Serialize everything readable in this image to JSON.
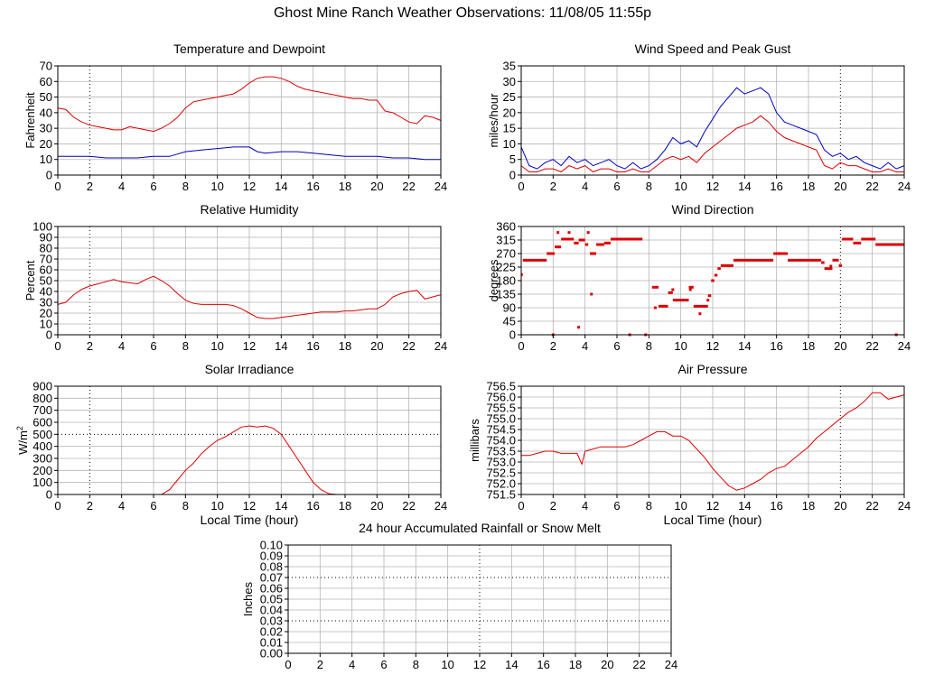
{
  "page": {
    "title": "Ghost Mine Ranch Weather Observations: 11/08/05 11:55p"
  },
  "colors": {
    "red": "#dd0000",
    "blue": "#0000bb",
    "grid": "#b4b4b4",
    "axis": "#000000"
  },
  "chart_data": [
    {
      "id": "temp",
      "type": "line",
      "title": "Temperature and Dewpoint",
      "ylabel": "Fahrenheit",
      "xlabel": "",
      "xlim": [
        0,
        24
      ],
      "ylim": [
        0,
        70
      ],
      "xticks": [
        0,
        2,
        4,
        6,
        8,
        10,
        12,
        14,
        16,
        18,
        20,
        22,
        24
      ],
      "yticks": [
        0,
        10,
        20,
        30,
        40,
        50,
        60,
        70
      ],
      "ytick_labels": [
        "0",
        "10",
        "20",
        "30",
        "40",
        "50",
        "60",
        "70"
      ],
      "grid": true,
      "series": [
        {
          "color": "#dd0000",
          "x": [
            0,
            0.5,
            1,
            1.5,
            2,
            2.5,
            3,
            3.5,
            4,
            4.5,
            5,
            5.5,
            6,
            6.5,
            7,
            7.5,
            8,
            8.5,
            9,
            9.5,
            10,
            10.5,
            11,
            11.5,
            12,
            12.5,
            13,
            13.5,
            14,
            14.5,
            15,
            15.5,
            16,
            16.5,
            17,
            17.5,
            18,
            18.5,
            19,
            19.5,
            20,
            20.5,
            21,
            21.5,
            22,
            22.5,
            23,
            23.5,
            24
          ],
          "values": [
            43,
            42,
            37,
            34,
            32,
            31,
            30,
            29,
            29,
            31,
            30,
            29,
            28,
            30,
            33,
            37,
            43,
            47,
            48,
            49,
            50,
            51,
            52,
            55,
            59,
            62,
            63,
            63,
            62,
            60,
            57,
            55,
            54,
            53,
            52,
            51,
            50,
            49,
            49,
            48,
            48,
            41,
            40,
            37,
            34,
            33,
            38,
            37,
            35
          ]
        },
        {
          "color": "#0000bb",
          "x": [
            0,
            1,
            2,
            3,
            4,
            5,
            6,
            7,
            8,
            9,
            10,
            11,
            12,
            12.5,
            13,
            14,
            15,
            16,
            17,
            18,
            19,
            20,
            21,
            22,
            23,
            24
          ],
          "values": [
            12,
            12,
            12,
            11,
            11,
            11,
            12,
            12,
            15,
            16,
            17,
            18,
            18,
            15,
            14,
            15,
            15,
            14,
            13,
            12,
            12,
            12,
            11,
            11,
            10,
            10
          ]
        }
      ]
    },
    {
      "id": "wind",
      "type": "line",
      "title": "Wind Speed and Peak Gust",
      "ylabel": "miles/hour",
      "xlabel": "",
      "xlim": [
        0,
        24
      ],
      "ylim": [
        0,
        35
      ],
      "xticks": [
        0,
        2,
        4,
        6,
        8,
        10,
        12,
        14,
        16,
        18,
        20,
        22,
        24
      ],
      "yticks": [
        0,
        5,
        10,
        15,
        20,
        25,
        30,
        35
      ],
      "ytick_labels": [
        "0",
        "5",
        "10",
        "15",
        "20",
        "25",
        "30",
        "35"
      ],
      "grid": true,
      "series": [
        {
          "color": "#0000bb",
          "x": [
            0,
            0.5,
            1,
            1.5,
            2,
            2.5,
            3,
            3.5,
            4,
            4.5,
            5,
            5.5,
            6,
            6.5,
            7,
            7.5,
            8,
            8.5,
            9,
            9.5,
            10,
            10.5,
            11,
            11.5,
            12,
            12.5,
            13,
            13.5,
            14,
            14.5,
            15,
            15.5,
            16,
            16.5,
            17,
            17.5,
            18,
            18.5,
            19,
            19.5,
            20,
            20.5,
            21,
            21.5,
            22,
            22.5,
            23,
            23.5,
            24
          ],
          "values": [
            9,
            3,
            2,
            4,
            5,
            3,
            6,
            4,
            5,
            3,
            4,
            5,
            3,
            2,
            4,
            2,
            3,
            5,
            8,
            12,
            10,
            11,
            9,
            14,
            18,
            22,
            25,
            28,
            26,
            27,
            28,
            26,
            20,
            17,
            16,
            15,
            14,
            13,
            8,
            6,
            7,
            5,
            6,
            4,
            3,
            2,
            4,
            2,
            3
          ]
        },
        {
          "color": "#dd0000",
          "x": [
            0,
            0.5,
            1,
            1.5,
            2,
            2.5,
            3,
            3.5,
            4,
            4.5,
            5,
            5.5,
            6,
            6.5,
            7,
            7.5,
            8,
            8.5,
            9,
            9.5,
            10,
            10.5,
            11,
            11.5,
            12,
            12.5,
            13,
            13.5,
            14,
            14.5,
            15,
            15.5,
            16,
            16.5,
            17,
            17.5,
            18,
            18.5,
            19,
            19.5,
            20,
            20.5,
            21,
            21.5,
            22,
            22.5,
            23,
            23.5,
            24
          ],
          "values": [
            3,
            1,
            1,
            2,
            2,
            1,
            3,
            2,
            3,
            1,
            2,
            2,
            1,
            1,
            2,
            1,
            1,
            3,
            5,
            6,
            5,
            6,
            4,
            7,
            9,
            11,
            13,
            15,
            16,
            17,
            19,
            17,
            14,
            12,
            11,
            10,
            9,
            8,
            3,
            2,
            4,
            3,
            3,
            2,
            1,
            1,
            2,
            1,
            1
          ]
        }
      ]
    },
    {
      "id": "humidity",
      "type": "line",
      "title": "Relative Humidity",
      "ylabel": "Percent",
      "xlabel": "",
      "xlim": [
        0,
        24
      ],
      "ylim": [
        0,
        100
      ],
      "xticks": [
        0,
        2,
        4,
        6,
        8,
        10,
        12,
        14,
        16,
        18,
        20,
        22,
        24
      ],
      "yticks": [
        0,
        10,
        20,
        30,
        40,
        50,
        60,
        70,
        80,
        90,
        100
      ],
      "ytick_labels": [
        "0",
        "10",
        "20",
        "30",
        "40",
        "50",
        "60",
        "70",
        "80",
        "90",
        "100"
      ],
      "grid": true,
      "series": [
        {
          "color": "#dd0000",
          "x": [
            0,
            0.5,
            1,
            1.5,
            2,
            2.5,
            3,
            3.5,
            4,
            4.5,
            5,
            5.5,
            6,
            6.5,
            7,
            7.5,
            8,
            8.5,
            9,
            9.5,
            10,
            10.5,
            11,
            11.5,
            12,
            12.5,
            13,
            13.5,
            14,
            14.5,
            15,
            15.5,
            16,
            16.5,
            17,
            17.5,
            18,
            18.5,
            19,
            19.5,
            20,
            20.5,
            21,
            21.5,
            22,
            22.5,
            23,
            23.5,
            24
          ],
          "values": [
            28,
            30,
            37,
            42,
            45,
            47,
            49,
            51,
            49,
            48,
            47,
            51,
            54,
            50,
            45,
            38,
            32,
            29,
            28,
            28,
            28,
            28,
            27,
            24,
            20,
            16,
            15,
            15,
            16,
            17,
            18,
            19,
            20,
            21,
            21,
            21,
            22,
            22,
            23,
            24,
            24,
            28,
            35,
            38,
            40,
            41,
            33,
            35,
            37
          ]
        }
      ]
    },
    {
      "id": "winddir",
      "type": "scatter",
      "title": "Wind Direction",
      "ylabel": "degrees",
      "xlabel": "",
      "xlim": [
        0,
        24
      ],
      "ylim": [
        0,
        360
      ],
      "xticks": [
        0,
        2,
        4,
        6,
        8,
        10,
        12,
        14,
        16,
        18,
        20,
        22,
        24
      ],
      "yticks": [
        0,
        45,
        90,
        135,
        180,
        225,
        270,
        315,
        360
      ],
      "ytick_labels": [
        "0",
        "45",
        "90",
        "135",
        "180",
        "225",
        "270",
        "315",
        "360"
      ],
      "grid": true,
      "segments": [
        [
          0,
          0.1,
          200
        ],
        [
          0.1,
          1.6,
          248
        ],
        [
          1.6,
          2.1,
          270
        ],
        [
          2.1,
          2.5,
          292
        ],
        [
          2.5,
          3.3,
          318
        ],
        [
          3.3,
          3.6,
          305
        ],
        [
          3.6,
          4.0,
          315
        ],
        [
          4.0,
          4.2,
          300
        ],
        [
          4.3,
          4.7,
          270
        ],
        [
          4.7,
          5.2,
          300
        ],
        [
          5.2,
          5.6,
          305
        ],
        [
          5.6,
          7.6,
          318
        ],
        [
          8.2,
          8.6,
          158
        ],
        [
          8.6,
          9.2,
          95
        ],
        [
          9.2,
          9.5,
          140
        ],
        [
          9.5,
          10.5,
          115
        ],
        [
          10.5,
          10.8,
          158
        ],
        [
          10.8,
          11.7,
          95
        ],
        [
          11.7,
          11.9,
          130
        ],
        [
          11.9,
          12.1,
          180
        ],
        [
          12.1,
          12.3,
          198
        ],
        [
          12.3,
          12.5,
          220
        ],
        [
          12.5,
          13.3,
          230
        ],
        [
          13.3,
          15.8,
          248
        ],
        [
          15.8,
          16.7,
          270
        ],
        [
          16.7,
          18.8,
          248
        ],
        [
          18.8,
          19.0,
          240
        ],
        [
          19.0,
          19.5,
          220
        ],
        [
          19.5,
          19.9,
          248
        ],
        [
          19.9,
          20.1,
          230
        ],
        [
          20.1,
          20.8,
          318
        ],
        [
          20.8,
          21.3,
          305
        ],
        [
          21.3,
          22.2,
          318
        ],
        [
          22.2,
          24,
          300
        ]
      ],
      "points": [
        [
          2,
          0
        ],
        [
          2.3,
          340
        ],
        [
          3.0,
          340
        ],
        [
          3.6,
          25
        ],
        [
          4.2,
          340
        ],
        [
          4.4,
          135
        ],
        [
          6.8,
          0
        ],
        [
          7.8,
          0
        ],
        [
          8.4,
          90
        ],
        [
          9.5,
          150
        ],
        [
          10.6,
          150
        ],
        [
          11.2,
          70
        ],
        [
          11.7,
          115
        ],
        [
          19.4,
          228
        ],
        [
          23.5,
          0
        ]
      ]
    },
    {
      "id": "solar",
      "type": "line",
      "title": "Solar Irradiance",
      "ylabel": "W/m",
      "ylabel_sup": "2",
      "xlabel": "Local Time (hour)",
      "xlim": [
        0,
        24
      ],
      "ylim": [
        0,
        900
      ],
      "xticks": [
        0,
        2,
        4,
        6,
        8,
        10,
        12,
        14,
        16,
        18,
        20,
        22,
        24
      ],
      "yticks": [
        0,
        100,
        200,
        300,
        400,
        500,
        600,
        700,
        800,
        900
      ],
      "ytick_labels": [
        "0",
        "100",
        "200",
        "300",
        "400",
        "500",
        "600",
        "700",
        "800",
        "900"
      ],
      "grid": true,
      "series": [
        {
          "color": "#dd0000",
          "x": [
            0,
            6.5,
            7,
            7.5,
            8,
            8.5,
            9,
            9.5,
            10,
            10.5,
            11,
            11.5,
            12,
            12.5,
            13,
            13.5,
            14,
            14.5,
            15,
            15.5,
            16,
            16.5,
            17,
            17.5,
            24
          ],
          "values": [
            0,
            0,
            40,
            120,
            200,
            260,
            340,
            400,
            450,
            480,
            520,
            560,
            570,
            560,
            570,
            550,
            500,
            400,
            300,
            200,
            100,
            40,
            5,
            0,
            0
          ]
        }
      ]
    },
    {
      "id": "pressure",
      "type": "line",
      "title": "Air Pressure",
      "ylabel": "millibars",
      "xlabel": "Local Time (hour)",
      "xlim": [
        0,
        24
      ],
      "ylim": [
        751.5,
        756.5
      ],
      "xticks": [
        0,
        2,
        4,
        6,
        8,
        10,
        12,
        14,
        16,
        18,
        20,
        22,
        24
      ],
      "yticks": [
        751.5,
        752.0,
        752.5,
        753.0,
        753.5,
        754.0,
        754.5,
        755.0,
        755.5,
        756.0,
        756.5
      ],
      "ytick_labels": [
        "751.5",
        "752.0",
        "752.5",
        "753.0",
        "753.5",
        "754.0",
        "754.5",
        "755.0",
        "755.5",
        "756.0",
        "756.5"
      ],
      "grid": true,
      "series": [
        {
          "color": "#dd0000",
          "x": [
            0,
            0.5,
            1,
            1.5,
            2,
            2.5,
            3,
            3.5,
            3.8,
            4,
            4.5,
            5,
            5.5,
            6,
            6.5,
            7,
            7.5,
            8,
            8.5,
            9,
            9.5,
            10,
            10.5,
            11,
            11.5,
            12,
            12.5,
            13,
            13.5,
            14,
            14.5,
            15,
            15.5,
            16,
            16.5,
            17,
            17.5,
            18,
            18.5,
            19,
            19.5,
            20,
            20.5,
            21,
            21.5,
            22,
            22.5,
            23,
            23.5,
            24
          ],
          "values": [
            753.3,
            753.3,
            753.4,
            753.5,
            753.5,
            753.4,
            753.4,
            753.4,
            752.9,
            753.5,
            753.6,
            753.7,
            753.7,
            753.7,
            753.7,
            753.8,
            754.0,
            754.2,
            754.4,
            754.4,
            754.2,
            754.2,
            754.0,
            753.6,
            753.2,
            752.7,
            752.3,
            751.9,
            751.7,
            751.8,
            752.0,
            752.2,
            752.5,
            752.7,
            752.8,
            753.1,
            753.4,
            753.7,
            754.1,
            754.4,
            754.7,
            755.0,
            755.3,
            755.5,
            755.8,
            756.2,
            756.2,
            755.9,
            756.0,
            756.1
          ]
        }
      ]
    },
    {
      "id": "rain",
      "type": "line",
      "title": "24 hour Accumulated Rainfall or Snow Melt",
      "ylabel": "Inches",
      "xlabel": "",
      "xlim": [
        0,
        24
      ],
      "ylim": [
        0,
        0.1
      ],
      "xticks": [
        0,
        2,
        4,
        6,
        8,
        10,
        12,
        14,
        16,
        18,
        20,
        22,
        24
      ],
      "yticks": [
        0,
        0.01,
        0.02,
        0.03,
        0.04,
        0.05,
        0.06,
        0.07,
        0.08,
        0.09,
        0.1
      ],
      "ytick_labels": [
        "0.00",
        "0.01",
        "0.02",
        "0.03",
        "0.04",
        "0.05",
        "0.06",
        "0.07",
        "0.08",
        "0.09",
        "0.10"
      ],
      "grid": true,
      "series": [
        {
          "color": "#dd0000",
          "x": [
            0,
            24
          ],
          "values": [
            0,
            0
          ]
        }
      ]
    }
  ]
}
